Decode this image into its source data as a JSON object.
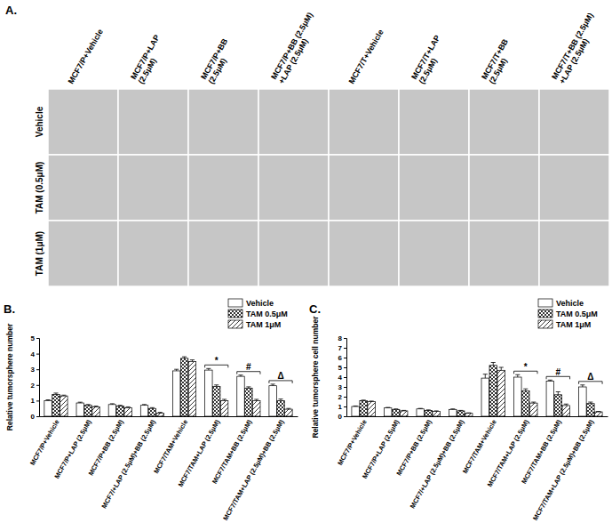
{
  "image_grid": {
    "label": "A.",
    "columns": [
      [
        "MCF7/P+Vehicle"
      ],
      [
        "MCF7/P+LAP",
        "(2.5μM)"
      ],
      [
        "MCF7/P+BB",
        "(2.5μM)"
      ],
      [
        "MCF7/P+BB (2.5μM)",
        "+LAP (2.5μM)"
      ],
      [
        "MCF7/T+Vehicle"
      ],
      [
        "MCF7/T+LAP",
        "(2.5μM)"
      ],
      [
        "MCF7/T+BB",
        "(2.5μM)"
      ],
      [
        "MCF7/T+BB (2.5μM)",
        "+LAP (2.5μM)"
      ]
    ],
    "rows": [
      "Vehicle",
      "TAM (0.5μM)",
      "TAM (1μM)"
    ]
  },
  "chart_data": [
    {
      "type": "bar",
      "title": "B.",
      "y_label": "Relative tumorsphere number",
      "categories": [
        "MCF7/P+Vehicle",
        "MCF7/P+LAP (2.5μM)",
        "MCF7/P+BB (2.5μM)",
        "MCF7/+LAP (2.5μM)+BB (2.5μM)",
        "MCF7/TAM+Vehicle",
        "MCF7/TAM+LAP (2.5μM)",
        "MCF7/TAM+BB (2.5μM)",
        "MCF7/TAM+LAP (2.5μM)+BB (2.5μM)"
      ],
      "series": [
        {
          "name": "Vehicle",
          "color": "#ffffff",
          "values": [
            1.0,
            0.85,
            0.75,
            0.7,
            2.9,
            2.95,
            2.55,
            1.95
          ],
          "errors": [
            0.05,
            0.05,
            0.05,
            0.05,
            0.1,
            0.1,
            0.08,
            0.1
          ]
        },
        {
          "name": "TAM 0.5μM",
          "color": "#000000",
          "values": [
            1.4,
            0.7,
            0.65,
            0.5,
            3.7,
            1.9,
            1.8,
            1.0
          ],
          "errors": [
            0.08,
            0.05,
            0.05,
            0.05,
            0.1,
            0.1,
            0.08,
            0.1
          ]
        },
        {
          "name": "TAM 1μM",
          "color": "#000000",
          "values": [
            1.3,
            0.6,
            0.55,
            0.2,
            3.5,
            1.0,
            1.0,
            0.45
          ],
          "errors": [
            0.05,
            0.05,
            0.05,
            0.05,
            0.1,
            0.08,
            0.08,
            0.05
          ]
        }
      ],
      "annotations": [
        {
          "text": "*",
          "index": 5
        },
        {
          "text": "#",
          "index": 6
        },
        {
          "text": "Δ",
          "index": 7
        }
      ],
      "ylim": [
        0,
        5
      ],
      "yticks": [
        0,
        1,
        2,
        3,
        4,
        5
      ],
      "grid": false,
      "legend": "top-right"
    },
    {
      "type": "bar",
      "title": "C.",
      "y_label": "Relative tumorsphere cell number",
      "categories": [
        "MCF7/P+Vehicle",
        "MCF7/P+LAP (2.5μM)",
        "MCF7/P+BB (2.5μM)",
        "MCF7/+LAP (2.5μM)+BB (2.5μM)",
        "MCF7/TAM+Vehicle",
        "MCF7/TAM+LAP (2.5μM)",
        "MCF7/TAM+BB (2.5μM)",
        "MCF7/TAM+LAP (2.5μM)+BB (2.5μM)"
      ],
      "series": [
        {
          "name": "Vehicle",
          "color": "#ffffff",
          "values": [
            1.0,
            0.85,
            0.75,
            0.7,
            3.9,
            4.0,
            3.6,
            3.0
          ],
          "errors": [
            0.05,
            0.05,
            0.05,
            0.05,
            0.4,
            0.25,
            0.1,
            0.2
          ]
        },
        {
          "name": "TAM 0.5μM",
          "color": "#000000",
          "values": [
            1.6,
            0.7,
            0.6,
            0.55,
            5.2,
            2.6,
            2.2,
            1.3
          ],
          "errors": [
            0.05,
            0.05,
            0.05,
            0.05,
            0.3,
            0.2,
            0.3,
            0.15
          ]
        },
        {
          "name": "TAM 1μM",
          "color": "#000000",
          "values": [
            1.5,
            0.55,
            0.5,
            0.3,
            4.7,
            1.35,
            1.1,
            0.45
          ],
          "errors": [
            0.05,
            0.05,
            0.05,
            0.05,
            0.3,
            0.1,
            0.15,
            0.05
          ]
        }
      ],
      "annotations": [
        {
          "text": "*",
          "index": 5
        },
        {
          "text": "#",
          "index": 6
        },
        {
          "text": "Δ",
          "index": 7
        }
      ],
      "ylim": [
        0,
        8
      ],
      "yticks": [
        0,
        1,
        2,
        3,
        4,
        5,
        6,
        7,
        8
      ],
      "grid": false,
      "legend": "top-right"
    }
  ]
}
